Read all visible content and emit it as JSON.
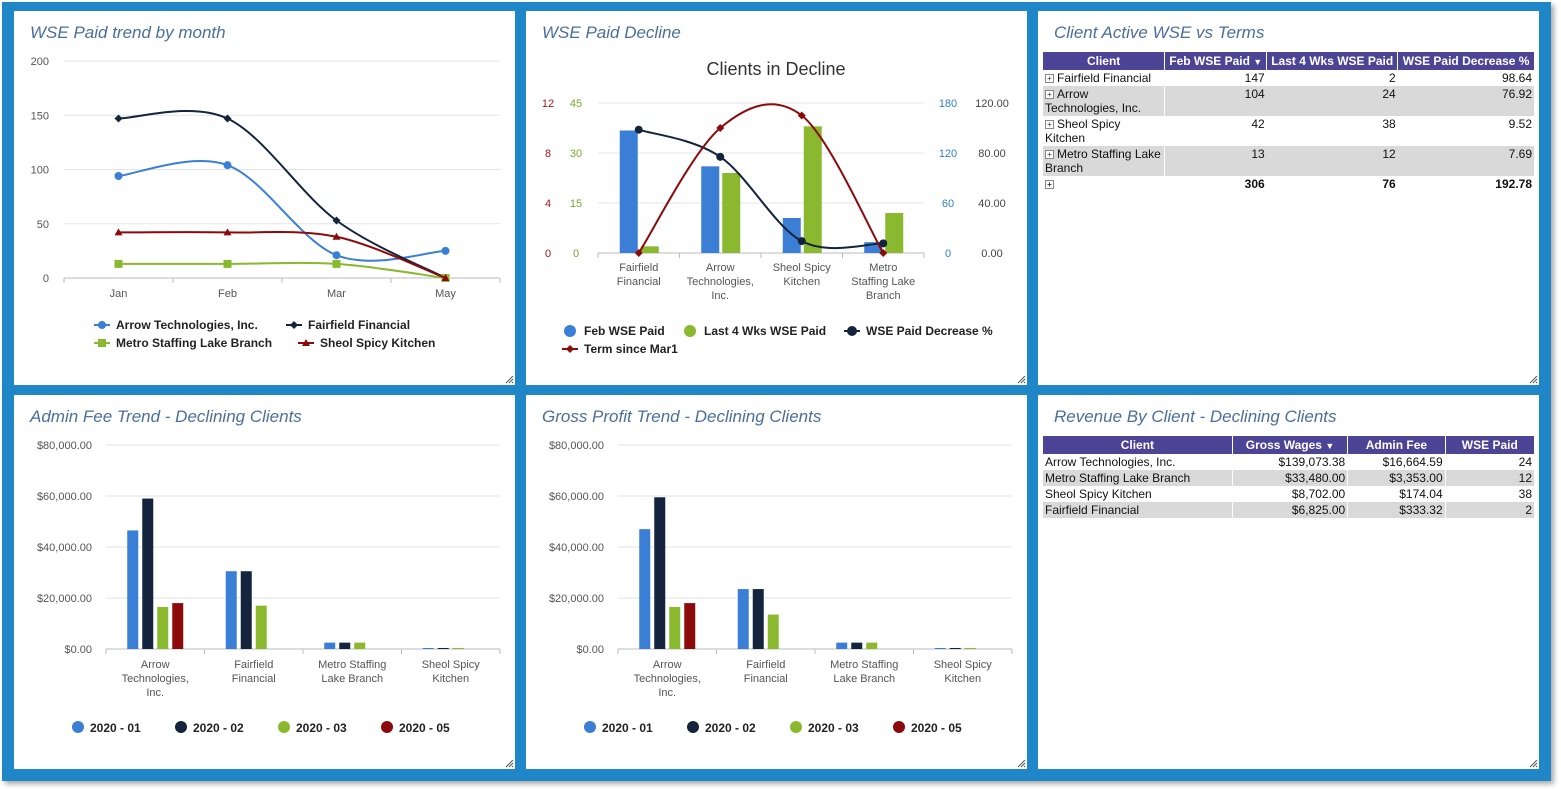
{
  "colors": {
    "blue": "#3a7fd5",
    "navy": "#14243d",
    "green": "#8ab82e",
    "red": "#8b0a0a",
    "header": "#4d4496",
    "title": "#4a6f9a"
  },
  "panels": {
    "p1": {
      "title": "WSE Paid trend by month"
    },
    "p2": {
      "title": "WSE Paid Decline"
    },
    "p3": {
      "title": "Client Active WSE vs Terms"
    },
    "p4": {
      "title": "Admin Fee Trend - Declining Clients"
    },
    "p5": {
      "title": "Gross Profit Trend - Declining Clients"
    },
    "p6": {
      "title": "Revenue By Client - Declining Clients"
    }
  },
  "chart_data": [
    {
      "type": "line",
      "x": [
        "Jan",
        "Feb",
        "Mar",
        "May"
      ],
      "ylim": [
        0,
        200
      ],
      "yticks": [
        "200",
        "150",
        "100",
        "50",
        "0"
      ],
      "legend_position": "bottom",
      "series": [
        {
          "name": "Arrow Technologies, Inc.",
          "values": [
            94,
            104,
            21,
            25
          ],
          "color": "#3a7fd5",
          "marker": "circle"
        },
        {
          "name": "Fairfield Financial",
          "values": [
            147,
            147,
            53,
            0
          ],
          "color": "#14243d",
          "marker": "diamond"
        },
        {
          "name": "Metro Staffing Lake Branch",
          "values": [
            13,
            13,
            13,
            0
          ],
          "color": "#8ab82e",
          "marker": "square"
        },
        {
          "name": "Sheol Spicy Kitchen",
          "values": [
            42,
            42,
            38,
            0
          ],
          "color": "#8b0a0a",
          "marker": "triangle"
        }
      ]
    },
    {
      "type": "bar",
      "title": "Clients in Decline",
      "categories": [
        [
          "Fairfield",
          "Financial"
        ],
        [
          "Arrow",
          "Technologies,",
          "Inc."
        ],
        [
          "Sheol Spicy",
          "Kitchen"
        ],
        [
          "Metro",
          "Staffing Lake",
          "Branch"
        ]
      ],
      "axes": {
        "red": {
          "ticks": [
            "12",
            "8",
            "4",
            "0"
          ],
          "max": 12
        },
        "green": {
          "ticks": [
            "45",
            "30",
            "15",
            "0"
          ],
          "max": 45
        },
        "blue": {
          "ticks": [
            "180",
            "120",
            "60",
            "0"
          ],
          "max": 180
        },
        "pct": {
          "ticks": [
            "120.00",
            "80.00",
            "40.00",
            "0.00"
          ],
          "max": 120
        }
      },
      "legend_position": "bottom",
      "series": [
        {
          "name": "Feb WSE Paid",
          "values": [
            147,
            104,
            42,
            13
          ],
          "color": "#3a7fd5",
          "kind": "bar"
        },
        {
          "name": "Last 4 Wks WSE Paid",
          "values": [
            2,
            24,
            38,
            12
          ],
          "color": "#8ab82e",
          "kind": "bar"
        },
        {
          "name": "WSE Paid Decrease %",
          "values": [
            98.64,
            76.92,
            9.52,
            7.69
          ],
          "color": "#14243d",
          "kind": "line"
        },
        {
          "name": "Term since Mar1",
          "values": [
            0,
            10,
            11,
            0
          ],
          "color": "#8b0a0a",
          "kind": "line"
        }
      ]
    },
    {
      "type": "bar",
      "categories": [
        [
          "Arrow",
          "Technologies,",
          "Inc."
        ],
        [
          "Fairfield",
          "Financial"
        ],
        [
          "Metro Staffing",
          "Lake Branch"
        ],
        [
          "Sheol Spicy",
          "Kitchen"
        ]
      ],
      "ylim": [
        0,
        80000
      ],
      "yticks": [
        "$80,000.00",
        "$60,000.00",
        "$40,000.00",
        "$20,000.00",
        "$0.00"
      ],
      "legend_position": "bottom",
      "series": [
        {
          "name": "2020 - 01",
          "values": [
            46500,
            30500,
            2500,
            400
          ],
          "color": "#3a7fd5"
        },
        {
          "name": "2020 - 02",
          "values": [
            59000,
            30500,
            2500,
            400
          ],
          "color": "#14243d"
        },
        {
          "name": "2020 - 03",
          "values": [
            16500,
            17000,
            2500,
            400
          ],
          "color": "#8ab82e"
        },
        {
          "name": "2020 - 05",
          "values": [
            18000,
            0,
            0,
            0
          ],
          "color": "#8b0a0a"
        }
      ]
    },
    {
      "type": "bar",
      "categories": [
        [
          "Arrow",
          "Technologies,",
          "Inc."
        ],
        [
          "Fairfield",
          "Financial"
        ],
        [
          "Metro Staffing",
          "Lake Branch"
        ],
        [
          "Sheol Spicy",
          "Kitchen"
        ]
      ],
      "ylim": [
        0,
        80000
      ],
      "yticks": [
        "$80,000.00",
        "$60,000.00",
        "$40,000.00",
        "$20,000.00",
        "$0.00"
      ],
      "legend_position": "bottom",
      "series": [
        {
          "name": "2020 - 01",
          "values": [
            47000,
            23500,
            2500,
            400
          ],
          "color": "#3a7fd5"
        },
        {
          "name": "2020 - 02",
          "values": [
            59500,
            23500,
            2500,
            400
          ],
          "color": "#14243d"
        },
        {
          "name": "2020 - 03",
          "values": [
            16500,
            13500,
            2500,
            400
          ],
          "color": "#8ab82e"
        },
        {
          "name": "2020 - 05",
          "values": [
            18000,
            0,
            0,
            0
          ],
          "color": "#8b0a0a"
        }
      ]
    }
  ],
  "table1": {
    "headers": [
      "Client",
      "Feb WSE Paid",
      "Last 4 Wks WSE Paid",
      "WSE Paid Decrease %"
    ],
    "rows": [
      {
        "client": "Fairfield Financial",
        "feb": "147",
        "last4": "2",
        "dec": "98.64"
      },
      {
        "client": "Arrow Technologies, Inc.",
        "feb": "104",
        "last4": "24",
        "dec": "76.92"
      },
      {
        "client": "Sheol Spicy Kitchen",
        "feb": "42",
        "last4": "38",
        "dec": "9.52"
      },
      {
        "client": "Metro Staffing Lake Branch",
        "feb": "13",
        "last4": "12",
        "dec": "7.69"
      }
    ],
    "total": {
      "feb": "306",
      "last4": "76",
      "dec": "192.78"
    }
  },
  "table2": {
    "headers": [
      "Client",
      "Gross Wages",
      "Admin Fee",
      "WSE Paid"
    ],
    "rows": [
      {
        "client": "Arrow Technologies, Inc.",
        "wages": "$139,073.38",
        "fee": "$16,664.59",
        "wse": "24"
      },
      {
        "client": "Metro Staffing Lake Branch",
        "wages": "$33,480.00",
        "fee": "$3,353.00",
        "wse": "12"
      },
      {
        "client": "Sheol Spicy Kitchen",
        "wages": "$8,702.00",
        "fee": "$174.04",
        "wse": "38"
      },
      {
        "client": "Fairfield Financial",
        "wages": "$6,825.00",
        "fee": "$333.32",
        "wse": "2"
      }
    ]
  }
}
